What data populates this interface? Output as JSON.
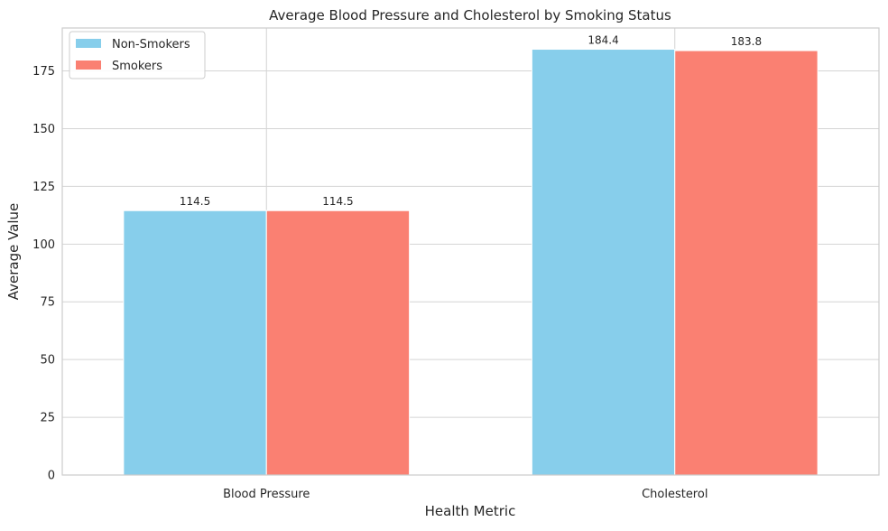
{
  "chart_data": {
    "type": "bar",
    "title": "Average Blood Pressure and Cholesterol by Smoking Status",
    "xlabel": "Health Metric",
    "ylabel": "Average Value",
    "categories": [
      "Blood Pressure",
      "Cholesterol"
    ],
    "series": [
      {
        "name": "Non-Smokers",
        "values": [
          114.5,
          184.4
        ],
        "labels": [
          "114.5",
          "184.4"
        ],
        "color": "#87ceeb"
      },
      {
        "name": "Smokers",
        "values": [
          114.5,
          183.8
        ],
        "labels": [
          "114.5",
          "183.8"
        ],
        "color": "#fa8072"
      }
    ],
    "ylim": [
      0,
      193.6
    ],
    "yticks": [
      0,
      25,
      50,
      75,
      100,
      125,
      150,
      175
    ],
    "ytick_labels": [
      "0",
      "25",
      "50",
      "75",
      "100",
      "125",
      "150",
      "175"
    ],
    "grid": true,
    "legend_position": "top-left",
    "colors": {
      "grid": "#d4d4d4",
      "axes_edge": "#cccccc",
      "text": "#262626"
    }
  }
}
